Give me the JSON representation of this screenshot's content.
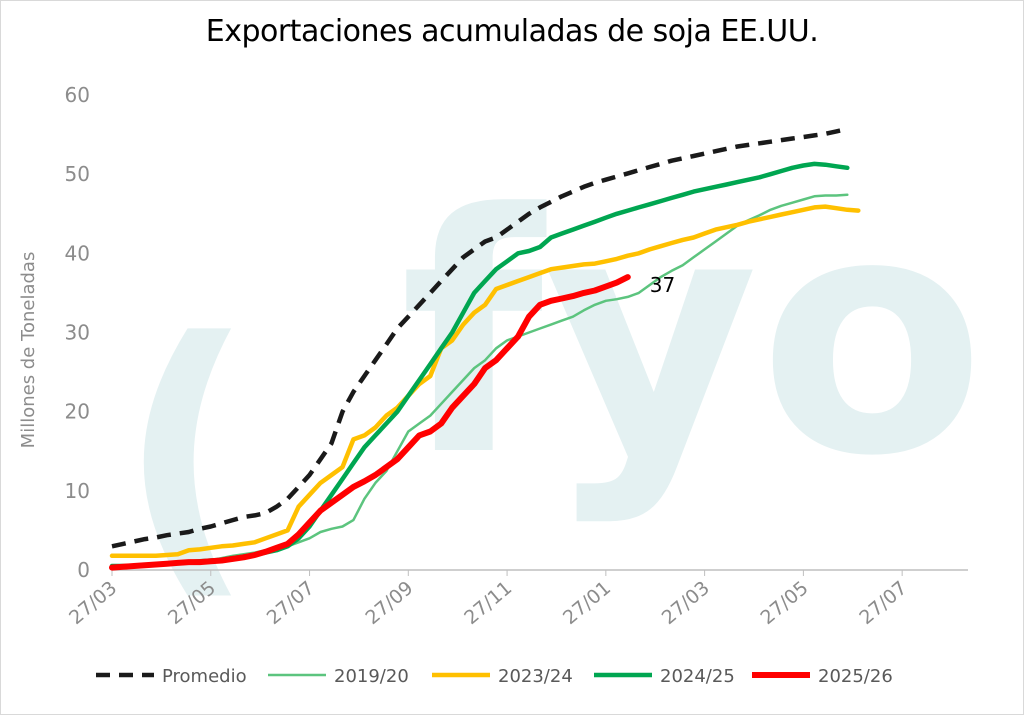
{
  "chart_data": {
    "type": "line",
    "title": "Exportaciones acumuladas de soja EE.UU.",
    "ylabel": "Millones de Toneladas",
    "xlabel": "",
    "ylim": [
      0,
      60
    ],
    "yticks": [
      0,
      10,
      20,
      30,
      40,
      50,
      60
    ],
    "x_tick_labels": [
      "27/03",
      "27/05",
      "27/07",
      "27/09",
      "27/11",
      "27/01",
      "27/03",
      "27/05",
      "27/07"
    ],
    "x_tick_index": [
      0,
      9,
      18,
      27,
      36,
      45,
      54,
      63,
      72
    ],
    "x_count": 79,
    "grid": false,
    "legend_position": "bottom",
    "watermark": "fyo",
    "end_label": {
      "series": "2025/26",
      "text": "37"
    },
    "series": [
      {
        "name": "Promedio",
        "color": "#1a1a1a",
        "width": 4.5,
        "dash": "14,9",
        "values": [
          3.0,
          3.3,
          3.6,
          3.9,
          4.1,
          4.4,
          4.6,
          4.8,
          5.2,
          5.5,
          5.9,
          6.3,
          6.7,
          6.9,
          7.2,
          8.0,
          9.0,
          10.5,
          12.0,
          14.0,
          16.0,
          20.0,
          22.5,
          24.5,
          26.5,
          28.5,
          30.5,
          32.0,
          33.5,
          35.0,
          36.5,
          38.0,
          39.5,
          40.5,
          41.5,
          42.0,
          43.0,
          44.0,
          45.0,
          45.8,
          46.5,
          47.2,
          47.8,
          48.4,
          48.9,
          49.3,
          49.7,
          50.1,
          50.5,
          50.9,
          51.3,
          51.7,
          52.0,
          52.3,
          52.6,
          52.9,
          53.2,
          53.5,
          53.7,
          53.9,
          54.1,
          54.3,
          54.5,
          54.7,
          54.9,
          55.1,
          55.4,
          55.7
        ]
      },
      {
        "name": "2019/20",
        "color": "#5cc47e",
        "width": 2.5,
        "dash": "",
        "values": [
          0.5,
          0.5,
          0.5,
          0.6,
          0.6,
          0.7,
          0.8,
          0.9,
          1.0,
          1.2,
          1.5,
          1.8,
          2.0,
          2.2,
          2.5,
          2.8,
          3.0,
          3.5,
          4.0,
          4.8,
          5.2,
          5.5,
          6.3,
          9.0,
          11.0,
          12.5,
          15.0,
          17.5,
          18.5,
          19.5,
          21.0,
          22.5,
          24.0,
          25.5,
          26.5,
          28.0,
          29.0,
          29.5,
          30.0,
          30.5,
          31.0,
          31.5,
          32.0,
          32.8,
          33.5,
          34.0,
          34.2,
          34.5,
          35.0,
          36.0,
          37.0,
          37.8,
          38.5,
          39.5,
          40.5,
          41.5,
          42.5,
          43.5,
          44.2,
          44.8,
          45.5,
          46.0,
          46.4,
          46.8,
          47.2,
          47.3,
          47.3,
          47.4
        ]
      },
      {
        "name": "2023/24",
        "color": "#ffc000",
        "width": 4.5,
        "dash": "",
        "values": [
          1.8,
          1.8,
          1.8,
          1.8,
          1.8,
          1.9,
          2.0,
          2.5,
          2.6,
          2.8,
          3.0,
          3.1,
          3.3,
          3.5,
          4.0,
          4.5,
          5.0,
          8.0,
          9.5,
          11.0,
          12.0,
          13.0,
          16.5,
          17.0,
          18.0,
          19.5,
          20.5,
          22.0,
          23.5,
          24.5,
          28.0,
          29.0,
          31.0,
          32.5,
          33.5,
          35.5,
          36.0,
          36.5,
          37.0,
          37.5,
          38.0,
          38.2,
          38.4,
          38.6,
          38.7,
          39.0,
          39.3,
          39.7,
          40.0,
          40.5,
          40.9,
          41.3,
          41.7,
          42.0,
          42.5,
          43.0,
          43.3,
          43.6,
          44.0,
          44.3,
          44.6,
          44.9,
          45.2,
          45.5,
          45.8,
          45.9,
          45.7,
          45.5,
          45.4
        ]
      },
      {
        "name": "2024/25",
        "color": "#00a651",
        "width": 4.5,
        "dash": "",
        "values": [
          0.5,
          0.5,
          0.5,
          0.6,
          0.7,
          0.8,
          0.9,
          1.0,
          1.1,
          1.2,
          1.3,
          1.5,
          1.7,
          1.9,
          2.2,
          2.5,
          3.0,
          4.0,
          5.5,
          7.5,
          9.5,
          11.5,
          13.5,
          15.5,
          17.0,
          18.5,
          20.0,
          22.0,
          24.0,
          26.0,
          28.0,
          30.0,
          32.5,
          35.0,
          36.5,
          38.0,
          39.0,
          40.0,
          40.3,
          40.8,
          42.0,
          42.5,
          43.0,
          43.5,
          44.0,
          44.5,
          45.0,
          45.4,
          45.8,
          46.2,
          46.6,
          47.0,
          47.4,
          47.8,
          48.1,
          48.4,
          48.7,
          49.0,
          49.3,
          49.6,
          50.0,
          50.4,
          50.8,
          51.1,
          51.3,
          51.2,
          51.0,
          50.8
        ]
      },
      {
        "name": "2025/26",
        "color": "#ff0000",
        "width": 6,
        "dash": "",
        "values": [
          0.3,
          0.4,
          0.5,
          0.6,
          0.7,
          0.8,
          0.9,
          1.0,
          1.0,
          1.1,
          1.2,
          1.4,
          1.6,
          1.9,
          2.3,
          2.8,
          3.3,
          4.5,
          6.0,
          7.5,
          8.5,
          9.5,
          10.5,
          11.2,
          12.0,
          13.0,
          14.0,
          15.5,
          17.0,
          17.5,
          18.5,
          20.5,
          22.0,
          23.5,
          25.5,
          26.5,
          28.0,
          29.5,
          32.0,
          33.5,
          34.0,
          34.3,
          34.6,
          35.0,
          35.3,
          35.8,
          36.3,
          37.0
        ]
      }
    ]
  }
}
